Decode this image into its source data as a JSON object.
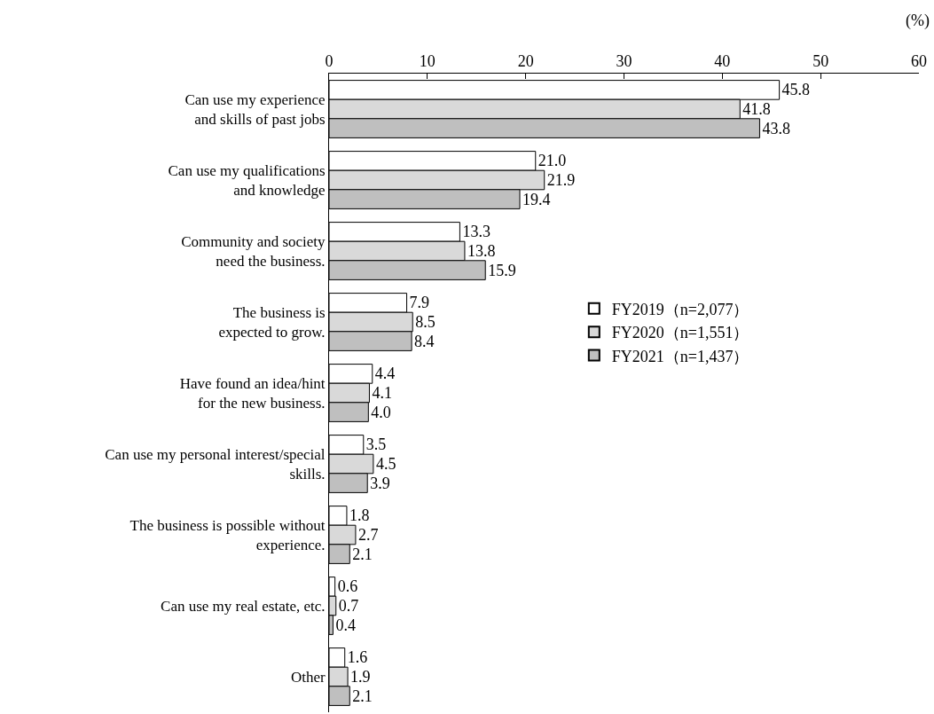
{
  "chart_data": {
    "type": "bar",
    "orientation": "horizontal",
    "categories": [
      "Can use my experience\nand skills of past jobs",
      "Can use my qualifications\nand knowledge",
      "Community and society\nneed the business.",
      "The business is\nexpected to grow.",
      "Have found an idea/hint\nfor the new business.",
      "Can use my personal interest/special\nskills.",
      "The business is possible without\nexperience.",
      "Can use my real estate, etc.",
      "Other"
    ],
    "series": [
      {
        "name": "FY2019（n=2,077）",
        "color": "#ffffff",
        "values": [
          45.8,
          21.0,
          13.3,
          7.9,
          4.4,
          3.5,
          1.8,
          0.6,
          1.6
        ],
        "value_labels": [
          "45.8",
          "21.0",
          "13.3",
          "7.9",
          "4.4",
          "3.5",
          "1.8",
          "0.6",
          "1.6"
        ]
      },
      {
        "name": "FY2020（n=1,551）",
        "color": "#d9d9d9",
        "values": [
          41.8,
          21.9,
          13.8,
          8.5,
          4.1,
          4.5,
          2.7,
          0.7,
          1.9
        ],
        "value_labels": [
          "41.8",
          "21.9",
          "13.8",
          "8.5",
          "4.1",
          "4.5",
          "2.7",
          "0.7",
          "1.9"
        ]
      },
      {
        "name": "FY2021（n=1,437）",
        "color": "#bfbfbf",
        "values": [
          43.8,
          19.4,
          15.9,
          8.4,
          4.0,
          3.9,
          2.1,
          0.4,
          2.1
        ],
        "value_labels": [
          "43.8",
          "19.4",
          "15.9",
          "8.4",
          "4.0",
          "3.9",
          "2.1",
          "0.4",
          "2.1"
        ]
      }
    ],
    "xlim": [
      0,
      60
    ],
    "xticks": [
      0,
      10,
      20,
      30,
      40,
      50,
      60
    ],
    "legend": "right",
    "annotations": [
      "(%)"
    ]
  }
}
